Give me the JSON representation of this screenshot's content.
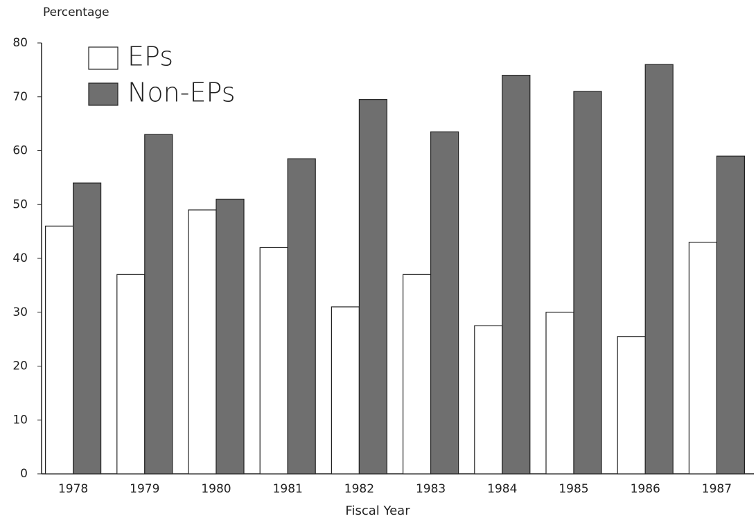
{
  "chart_data": {
    "type": "bar",
    "y_axis_label": "Percentage",
    "x_axis_label": "Fiscal Year",
    "categories": [
      "1978",
      "1979",
      "1980",
      "1981",
      "1982",
      "1983",
      "1984",
      "1985",
      "1986",
      "1987"
    ],
    "series": [
      {
        "name": "EPs",
        "color": "#ffffff",
        "values": [
          46,
          37,
          49,
          42,
          31,
          37,
          27.5,
          30,
          25.5,
          43
        ]
      },
      {
        "name": "Non-EPs",
        "color": "#6f6f6f",
        "values": [
          54,
          63,
          51,
          58.5,
          69.5,
          63.5,
          74,
          71,
          76,
          59
        ]
      }
    ],
    "ylim": [
      0,
      80
    ],
    "yticks": [
      0,
      10,
      20,
      30,
      40,
      50,
      60,
      70,
      80
    ],
    "grid": false,
    "legend": "upper left"
  }
}
